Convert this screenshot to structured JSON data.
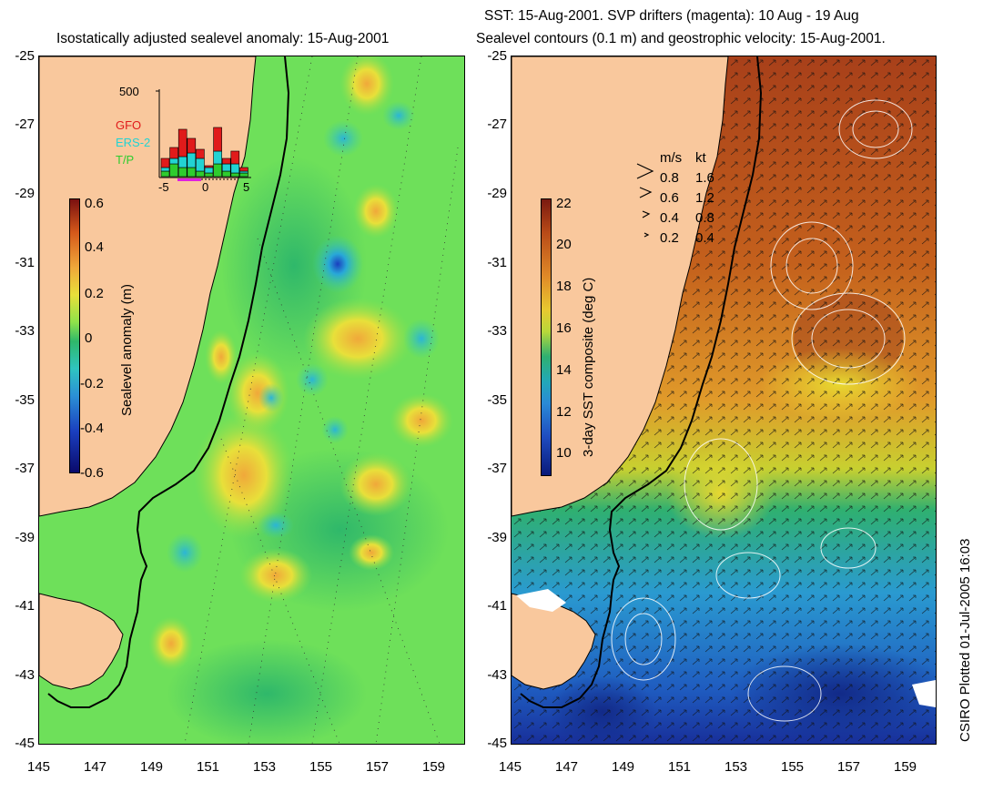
{
  "left_panel": {
    "title": "Isostatically adjusted sealevel anomaly: 15-Aug-2001",
    "colorbar_label": "Sealevel anomaly (m)",
    "colorbar_ticks": [
      "0.6",
      "0.4",
      "0.2",
      "0",
      "-0.2",
      "-0.4",
      "-0.6"
    ],
    "colorbar_range": [
      -0.6,
      0.6
    ],
    "inset": {
      "y_max_label": "500",
      "legend": [
        {
          "name": "GFO",
          "color": "#e01b1b"
        },
        {
          "name": "ERS-2",
          "color": "#22d3d3"
        },
        {
          "name": "T/P",
          "color": "#2ecc2e"
        }
      ],
      "x_ticks": [
        "-5",
        "0",
        "5"
      ]
    }
  },
  "right_panel": {
    "title_line1": "SST: 15-Aug-2001. SVP drifters (magenta): 10 Aug - 19 Aug",
    "title_line2": "Sealevel contours (0.1 m) and geostrophic velocity: 15-Aug-2001.",
    "colorbar_label": "3-day SST composite (deg C)",
    "colorbar_ticks": [
      "22",
      "20",
      "18",
      "16",
      "14",
      "12",
      "10"
    ],
    "colorbar_range": [
      9,
      22
    ],
    "velocity_legend": {
      "header_ms": "m/s",
      "header_kt": "kt",
      "rows": [
        {
          "ms": "0.8",
          "kt": "1.6"
        },
        {
          "ms": "0.6",
          "kt": "1.2"
        },
        {
          "ms": "0.4",
          "kt": "0.8"
        },
        {
          "ms": "0.2",
          "kt": "0.4"
        }
      ]
    }
  },
  "axes": {
    "lat_ticks": [
      "-25",
      "-27",
      "-29",
      "-31",
      "-33",
      "-35",
      "-37",
      "-39",
      "-41",
      "-43",
      "-45"
    ],
    "lon_ticks": [
      "145",
      "147",
      "149",
      "151",
      "153",
      "155",
      "157",
      "159"
    ]
  },
  "side_text": "CSIRO Plotted 01-Jul-2005 16:03",
  "colors": {
    "land": "#f9c89d",
    "coast": "#000000",
    "ocean_left": "#6ee05a",
    "ocean_right_south": "#1f9fd4",
    "ocean_right_north": "#d9741a"
  }
}
